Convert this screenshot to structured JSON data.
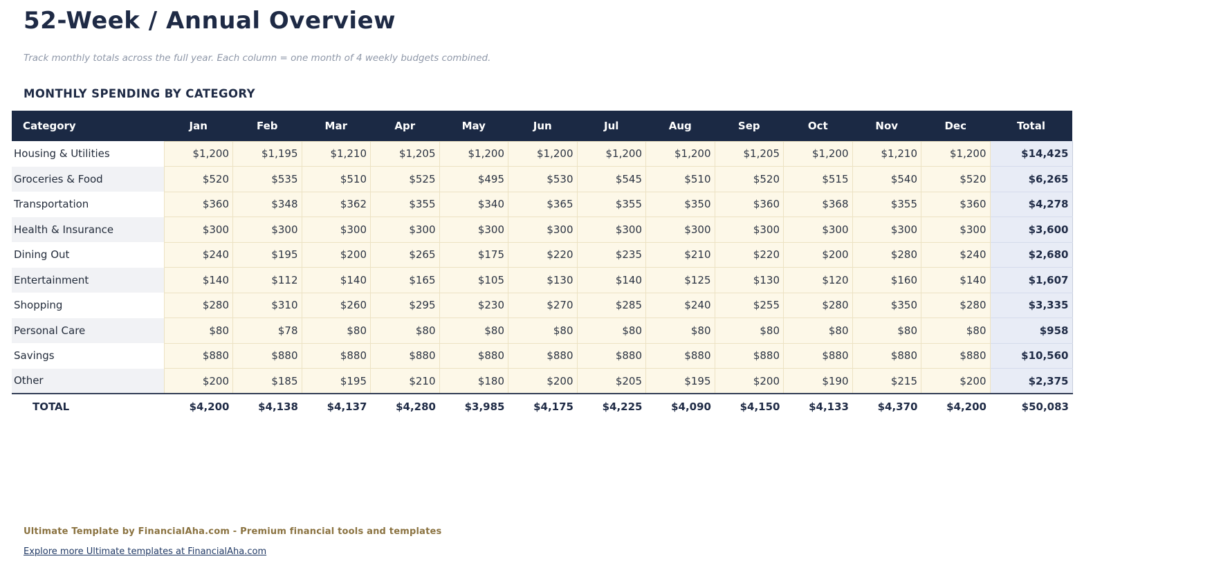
{
  "page": {
    "title": "52-Week / Annual Overview",
    "subtitle": "Track monthly totals across the full year. Each column = one month of 4 weekly budgets combined.",
    "section_title": "MONTHLY SPENDING BY CATEGORY"
  },
  "table": {
    "columns": [
      "Category",
      "Jan",
      "Feb",
      "Mar",
      "Apr",
      "May",
      "Jun",
      "Jul",
      "Aug",
      "Sep",
      "Oct",
      "Nov",
      "Dec",
      "Total"
    ],
    "rows": [
      {
        "category": "Housing & Utilities",
        "values": [
          "$1,200",
          "$1,195",
          "$1,210",
          "$1,205",
          "$1,200",
          "$1,200",
          "$1,200",
          "$1,200",
          "$1,205",
          "$1,200",
          "$1,210",
          "$1,200"
        ],
        "total": "$14,425"
      },
      {
        "category": "Groceries & Food",
        "values": [
          "$520",
          "$535",
          "$510",
          "$525",
          "$495",
          "$530",
          "$545",
          "$510",
          "$520",
          "$515",
          "$540",
          "$520"
        ],
        "total": "$6,265"
      },
      {
        "category": "Transportation",
        "values": [
          "$360",
          "$348",
          "$362",
          "$355",
          "$340",
          "$365",
          "$355",
          "$350",
          "$360",
          "$368",
          "$355",
          "$360"
        ],
        "total": "$4,278"
      },
      {
        "category": "Health & Insurance",
        "values": [
          "$300",
          "$300",
          "$300",
          "$300",
          "$300",
          "$300",
          "$300",
          "$300",
          "$300",
          "$300",
          "$300",
          "$300"
        ],
        "total": "$3,600"
      },
      {
        "category": "Dining Out",
        "values": [
          "$240",
          "$195",
          "$200",
          "$265",
          "$175",
          "$220",
          "$235",
          "$210",
          "$220",
          "$200",
          "$280",
          "$240"
        ],
        "total": "$2,680"
      },
      {
        "category": "Entertainment",
        "values": [
          "$140",
          "$112",
          "$140",
          "$165",
          "$105",
          "$130",
          "$140",
          "$125",
          "$130",
          "$120",
          "$160",
          "$140"
        ],
        "total": "$1,607"
      },
      {
        "category": "Shopping",
        "values": [
          "$280",
          "$310",
          "$260",
          "$295",
          "$230",
          "$270",
          "$285",
          "$240",
          "$255",
          "$280",
          "$350",
          "$280"
        ],
        "total": "$3,335"
      },
      {
        "category": "Personal Care",
        "values": [
          "$80",
          "$78",
          "$80",
          "$80",
          "$80",
          "$80",
          "$80",
          "$80",
          "$80",
          "$80",
          "$80",
          "$80"
        ],
        "total": "$958"
      },
      {
        "category": "Savings",
        "values": [
          "$880",
          "$880",
          "$880",
          "$880",
          "$880",
          "$880",
          "$880",
          "$880",
          "$880",
          "$880",
          "$880",
          "$880"
        ],
        "total": "$10,560"
      },
      {
        "category": "Other",
        "values": [
          "$200",
          "$185",
          "$195",
          "$210",
          "$180",
          "$200",
          "$205",
          "$195",
          "$200",
          "$190",
          "$215",
          "$200"
        ],
        "total": "$2,375"
      }
    ],
    "total_row": {
      "label": "TOTAL",
      "values": [
        "$4,200",
        "$4,138",
        "$4,137",
        "$4,280",
        "$3,985",
        "$4,175",
        "$4,225",
        "$4,090",
        "$4,150",
        "$4,133",
        "$4,370",
        "$4,200"
      ],
      "total": "$50,083"
    }
  },
  "footer": {
    "branding": "Ultimate Template by FinancialAha.com - Premium financial tools and templates",
    "link": "Explore more Ultimate templates at FinancialAha.com"
  },
  "colors": {
    "header_navy": "#1b2944",
    "cell_cream": "#fdf8e8",
    "cell_border_tan": "#ece2c3",
    "total_column_bg": "#e8ecf6",
    "alt_row_gray": "#f1f2f5",
    "brand_brown": "#8a7240",
    "link_navy": "#1f3864"
  }
}
